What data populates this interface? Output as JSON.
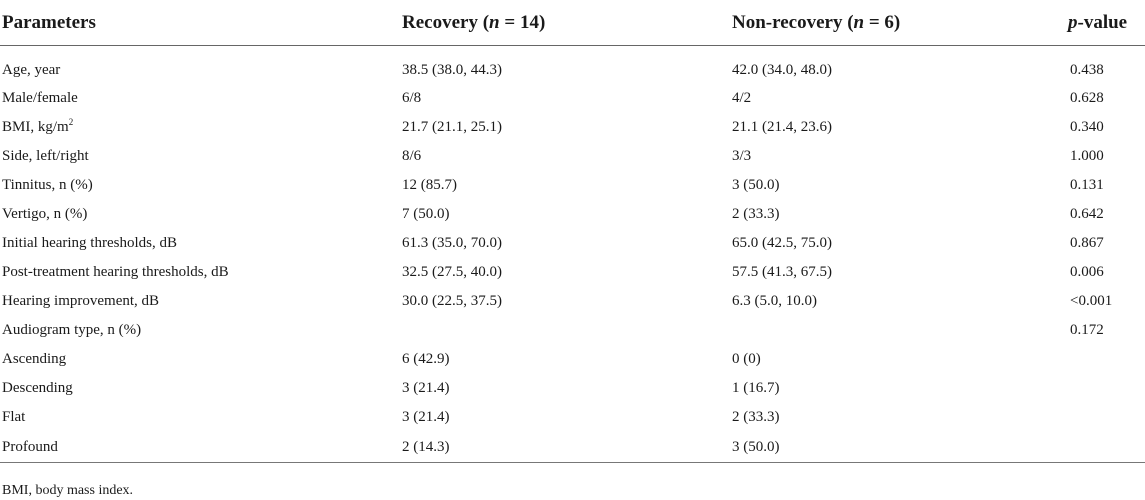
{
  "header": {
    "parameters": "Parameters",
    "recovery_label": "Recovery",
    "recovery_n": "(n = 14)",
    "nonrecovery_label": "Non-recovery",
    "nonrecovery_n": "(n = 6)",
    "pvalue_p": "p",
    "pvalue_rest": "-value"
  },
  "rows": [
    {
      "param": "Age, year",
      "recovery": "38.5 (38.0, 44.3)",
      "nonrecovery": "42.0 (34.0, 48.0)",
      "p": "0.438"
    },
    {
      "param": "Male/female",
      "recovery": "6/8",
      "nonrecovery": "4/2",
      "p": "0.628"
    },
    {
      "param": "BMI, kg/m",
      "param_sup": "2",
      "recovery": "21.7 (21.1, 25.1)",
      "nonrecovery": "21.1 (21.4, 23.6)",
      "p": "0.340"
    },
    {
      "param": "Side, left/right",
      "recovery": "8/6",
      "nonrecovery": "3/3",
      "p": "1.000"
    },
    {
      "param": "Tinnitus, n (%)",
      "recovery": "12 (85.7)",
      "nonrecovery": "3 (50.0)",
      "p": "0.131"
    },
    {
      "param": "Vertigo, n (%)",
      "recovery": "7 (50.0)",
      "nonrecovery": "2 (33.3)",
      "p": "0.642"
    },
    {
      "param": "Initial hearing thresholds, dB",
      "recovery": "61.3 (35.0, 70.0)",
      "nonrecovery": "65.0 (42.5, 75.0)",
      "p": "0.867"
    },
    {
      "param": "Post-treatment hearing thresholds, dB",
      "recovery": "32.5 (27.5, 40.0)",
      "nonrecovery": "57.5 (41.3, 67.5)",
      "p": "0.006"
    },
    {
      "param": "Hearing improvement, dB",
      "recovery": "30.0 (22.5, 37.5)",
      "nonrecovery": "6.3 (5.0, 10.0)",
      "p": "<0.001"
    },
    {
      "param": "Audiogram type, n (%)",
      "recovery": "",
      "nonrecovery": "",
      "p": "0.172"
    },
    {
      "param": "Ascending",
      "recovery": "6 (42.9)",
      "nonrecovery": "0 (0)",
      "p": ""
    },
    {
      "param": "Descending",
      "recovery": "3 (21.4)",
      "nonrecovery": "1 (16.7)",
      "p": ""
    },
    {
      "param": "Flat",
      "recovery": "3 (21.4)",
      "nonrecovery": "2 (33.3)",
      "p": ""
    },
    {
      "param": "Profound",
      "recovery": "2 (14.3)",
      "nonrecovery": "3 (50.0)",
      "p": ""
    }
  ],
  "footnote": "BMI, body mass index."
}
